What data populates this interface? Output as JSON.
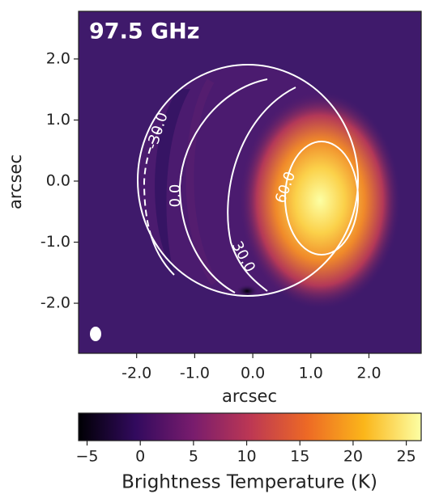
{
  "chart_data": {
    "type": "image",
    "title": "97.5 GHz",
    "x_label": "arcsec",
    "y_label": "arcsec",
    "xlim": [
      -3.0,
      2.9
    ],
    "ylim": [
      -2.82,
      2.78
    ],
    "xticks": [
      {
        "value": -2,
        "label": "-2.0"
      },
      {
        "value": -1,
        "label": "-1.0"
      },
      {
        "value": 0,
        "label": "0.0"
      },
      {
        "value": 1,
        "label": "1.0"
      },
      {
        "value": 2,
        "label": "2.0"
      }
    ],
    "yticks": [
      {
        "value": -2,
        "label": "-2.0"
      },
      {
        "value": -1,
        "label": "-1.0"
      },
      {
        "value": 0,
        "label": "0.0"
      },
      {
        "value": 1,
        "label": "1.0"
      },
      {
        "value": 2,
        "label": "2.0"
      }
    ],
    "contour_levels": [
      {
        "value": -30,
        "label": "-30.0"
      },
      {
        "value": 0,
        "label": "0.0"
      },
      {
        "value": 30,
        "label": "30.0"
      },
      {
        "value": 60,
        "label": "60.0"
      }
    ],
    "colorbar": {
      "label": "Brightness Temperature (K)",
      "lim": [
        -5.8,
        26.4
      ],
      "ticks": [
        {
          "value": -5,
          "label": "−5"
        },
        0,
        5,
        10,
        15,
        20,
        25
      ],
      "colormap": [
        "#000004",
        "#320a5e",
        "#781c6d",
        "#bc3754",
        "#ed6925",
        "#fbb61a",
        "#fcffa4"
      ]
    }
  }
}
